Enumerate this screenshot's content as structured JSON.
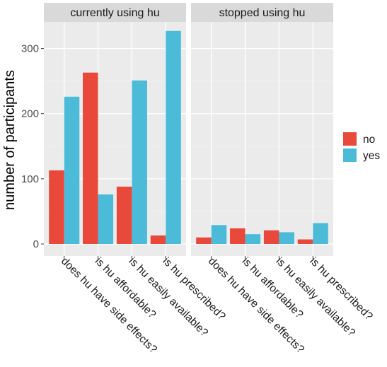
{
  "chart_data": {
    "type": "bar",
    "ylabel": "number of participants",
    "xlabel": "",
    "ylim": [
      0,
      340
    ],
    "yticks": [
      0,
      100,
      200,
      300
    ],
    "grid": true,
    "legend_position": "right",
    "categories": [
      "does hu have side effects?",
      "is hu affordable?",
      "is hu easily available?",
      "is hu prescribed?"
    ],
    "legend": [
      {
        "key": "no",
        "label": "no",
        "color": "#e8493a"
      },
      {
        "key": "yes",
        "label": "yes",
        "color": "#4bbbd8"
      }
    ],
    "panels": [
      {
        "title": "currently using hu",
        "series": [
          {
            "name": "no",
            "values": [
              113,
              263,
              88,
              13
            ]
          },
          {
            "name": "yes",
            "values": [
              226,
              76,
              251,
              327
            ]
          }
        ]
      },
      {
        "title": "stopped using hu",
        "series": [
          {
            "name": "no",
            "values": [
              10,
              24,
              21,
              7
            ]
          },
          {
            "name": "yes",
            "values": [
              29,
              15,
              18,
              32
            ]
          }
        ]
      }
    ]
  },
  "colors": {
    "panel_background": "#ebebeb",
    "strip_background": "#d9d9d9",
    "grid_major": "#ffffff"
  }
}
